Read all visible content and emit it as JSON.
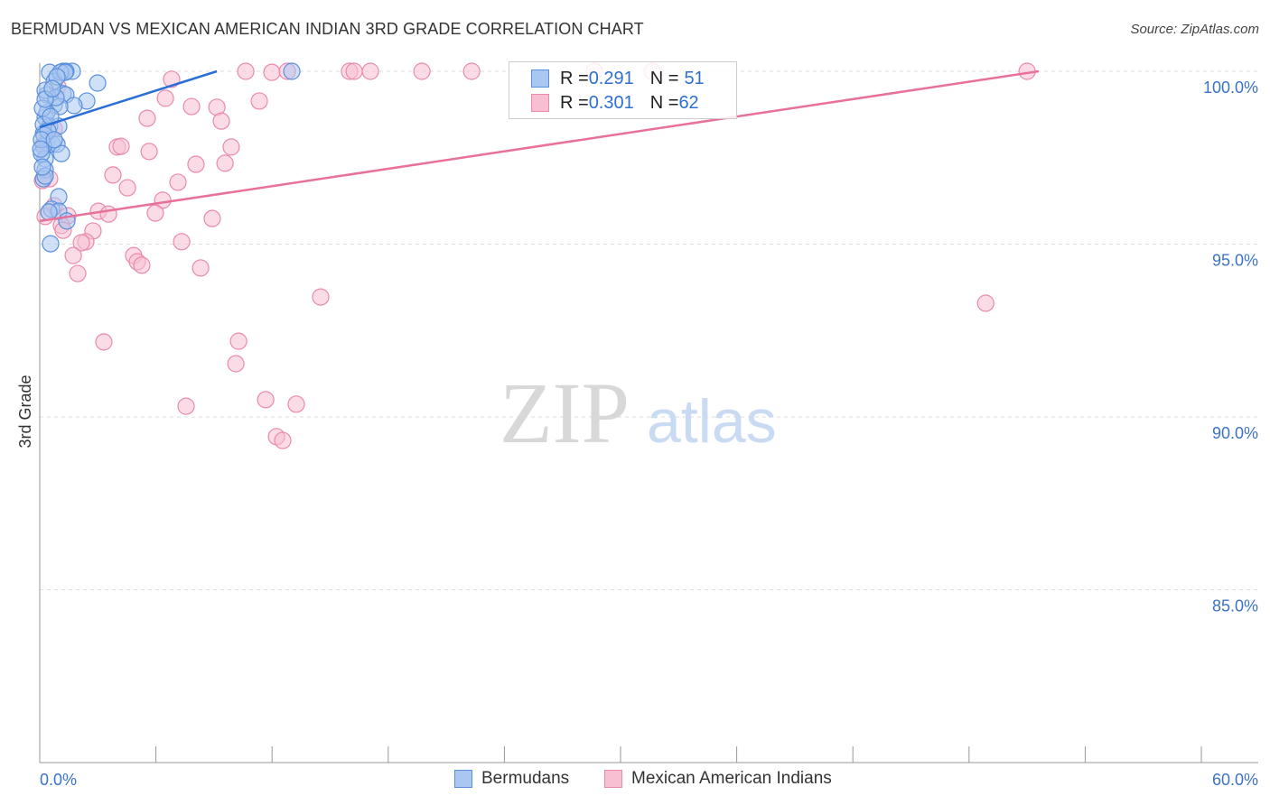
{
  "title": "BERMUDAN VS MEXICAN AMERICAN INDIAN 3RD GRADE CORRELATION CHART",
  "source": "Source: ZipAtlas.com",
  "watermark": {
    "zip": "ZIP",
    "atlas": "atlas"
  },
  "legend": [
    {
      "r_label": "R = ",
      "r": "0.291",
      "n_label": "N = ",
      "n": "51"
    },
    {
      "r_label": "R = ",
      "r": "0.301",
      "n_label": "N = ",
      "n": "62"
    }
  ],
  "colors": {
    "blue_fill": "#a9c7f0",
    "blue_stroke": "#5a8fdc",
    "blue_line": "#2a6fd6",
    "pink_fill": "#f8bfd2",
    "pink_stroke": "#e98aa9",
    "pink_line": "#e8709a",
    "tick": "#3b73c9"
  },
  "chart_data": {
    "type": "scatter",
    "title": "BERMUDAN VS MEXICAN AMERICAN INDIAN 3RD GRADE CORRELATION CHART",
    "xlabel": "",
    "ylabel": "3rd Grade",
    "xlim": [
      0,
      60
    ],
    "ylim": [
      80,
      100.6
    ],
    "x_tick_labels": [
      "0.0%",
      "60.0%"
    ],
    "y_ticks": [
      100,
      95,
      90,
      85
    ],
    "y_tick_labels": [
      "100.0%",
      "95.0%",
      "90.0%",
      "85.0%"
    ],
    "legend_position": "bottom",
    "series": [
      {
        "name": "Bermudans",
        "trend": [
          [
            0,
            98.38
          ],
          [
            9.15,
            100
          ]
        ],
        "points": [
          [
            0.51,
            99.97
          ],
          [
            1.21,
            100
          ],
          [
            1.68,
            100
          ],
          [
            1.35,
            100
          ],
          [
            13.02,
            100
          ],
          [
            2.99,
            99.66
          ],
          [
            0.75,
            99.71
          ],
          [
            0.37,
            99.32
          ],
          [
            1.21,
            99.35
          ],
          [
            1.35,
            99.32
          ],
          [
            2.43,
            99.14
          ],
          [
            1.77,
            99.01
          ],
          [
            0.75,
            99.03
          ],
          [
            1.03,
            98.98
          ],
          [
            0.28,
            98.67
          ],
          [
            0.37,
            98.8
          ],
          [
            0.51,
            98.41
          ],
          [
            0.98,
            98.41
          ],
          [
            0.19,
            98.2
          ],
          [
            0.37,
            97.94
          ],
          [
            0.65,
            97.89
          ],
          [
            0.89,
            97.89
          ],
          [
            0.19,
            97.83
          ],
          [
            1.12,
            97.62
          ],
          [
            0.28,
            97.47
          ],
          [
            0.28,
            97.15
          ],
          [
            0.19,
            96.89
          ],
          [
            0.98,
            96.37
          ],
          [
            0.61,
            96.01
          ],
          [
            0.98,
            95.95
          ],
          [
            1.4,
            95.67
          ],
          [
            0.56,
            95.01
          ],
          [
            0.28,
            99.45
          ],
          [
            0.19,
            98.46
          ],
          [
            0.09,
            97.62
          ],
          [
            0.23,
            98.15
          ],
          [
            0.42,
            98.28
          ],
          [
            1.07,
            99.97
          ],
          [
            0.84,
            99.24
          ],
          [
            0.14,
            98.93
          ],
          [
            0.09,
            98.02
          ],
          [
            0.05,
            97.75
          ],
          [
            0.28,
            96.97
          ],
          [
            0.47,
            95.93
          ],
          [
            0.75,
            98.02
          ],
          [
            0.14,
            97.23
          ],
          [
            0.28,
            99.19
          ],
          [
            0.56,
            98.69
          ],
          [
            1.31,
            99.97
          ],
          [
            0.89,
            99.84
          ],
          [
            0.65,
            99.5
          ]
        ]
      },
      {
        "name": "Mexican American Indians",
        "trend": [
          [
            0,
            95.67
          ],
          [
            51.6,
            100
          ]
        ],
        "points": [
          [
            6.81,
            99.77
          ],
          [
            5.55,
            98.64
          ],
          [
            7.84,
            98.98
          ],
          [
            9.15,
            98.96
          ],
          [
            9.38,
            98.56
          ],
          [
            6.49,
            99.22
          ],
          [
            11.34,
            99.14
          ],
          [
            10.64,
            100
          ],
          [
            11.99,
            99.97
          ],
          [
            12.79,
            100
          ],
          [
            16.0,
            100
          ],
          [
            16.24,
            100
          ],
          [
            17.08,
            100
          ],
          [
            19.74,
            100
          ],
          [
            22.31,
            100
          ],
          [
            28.65,
            100
          ],
          [
            31.64,
            100
          ],
          [
            51.0,
            100
          ],
          [
            4.01,
            97.81
          ],
          [
            4.2,
            97.83
          ],
          [
            5.65,
            97.68
          ],
          [
            9.89,
            97.81
          ],
          [
            8.07,
            97.31
          ],
          [
            9.57,
            97.34
          ],
          [
            3.78,
            97.0
          ],
          [
            4.53,
            96.63
          ],
          [
            7.14,
            96.79
          ],
          [
            6.35,
            96.27
          ],
          [
            5.97,
            95.9
          ],
          [
            8.91,
            95.74
          ],
          [
            3.03,
            95.95
          ],
          [
            3.55,
            95.87
          ],
          [
            1.45,
            95.82
          ],
          [
            2.75,
            95.38
          ],
          [
            1.12,
            95.54
          ],
          [
            2.38,
            95.07
          ],
          [
            2.15,
            95.04
          ],
          [
            7.33,
            95.07
          ],
          [
            1.73,
            94.67
          ],
          [
            4.85,
            94.67
          ],
          [
            5.04,
            94.49
          ],
          [
            5.27,
            94.39
          ],
          [
            8.31,
            94.31
          ],
          [
            1.96,
            94.15
          ],
          [
            14.51,
            93.47
          ],
          [
            48.86,
            93.29
          ],
          [
            3.31,
            92.17
          ],
          [
            10.27,
            92.19
          ],
          [
            10.13,
            91.54
          ],
          [
            11.67,
            90.5
          ],
          [
            13.25,
            90.37
          ],
          [
            7.56,
            90.31
          ],
          [
            12.23,
            89.43
          ],
          [
            12.55,
            89.32
          ],
          [
            0.51,
            96.89
          ],
          [
            0.75,
            96.11
          ],
          [
            1.21,
            95.4
          ],
          [
            0.19,
            97.89
          ],
          [
            0.28,
            95.8
          ],
          [
            0.75,
            98.33
          ],
          [
            0.93,
            99.56
          ],
          [
            0.14,
            96.84
          ]
        ]
      }
    ]
  }
}
